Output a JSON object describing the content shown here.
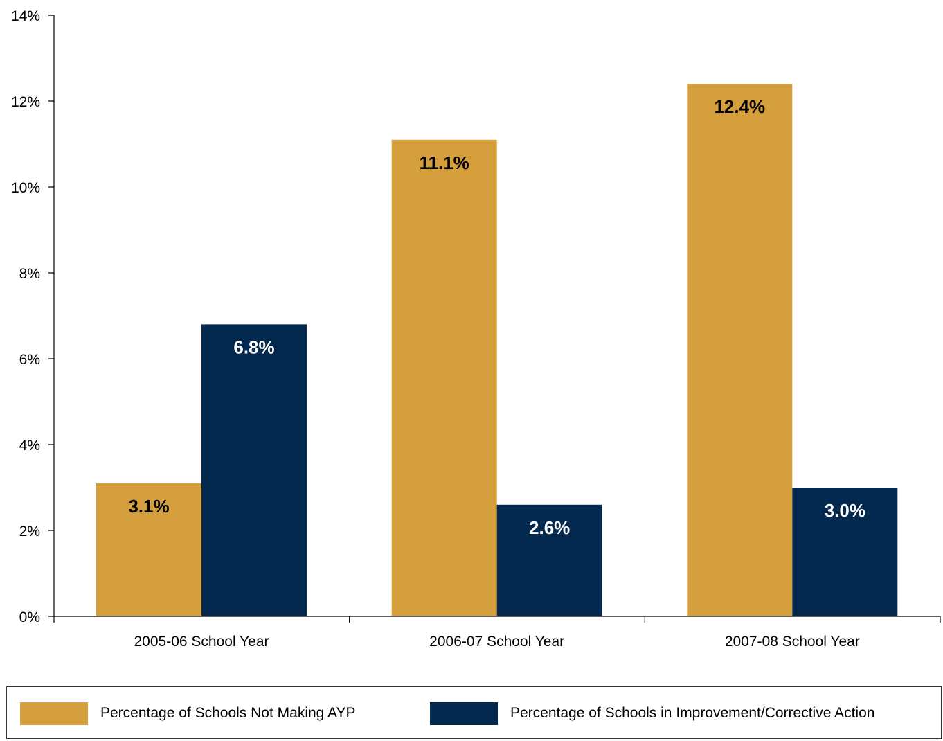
{
  "chart_data": {
    "type": "bar",
    "title": "",
    "xlabel": "",
    "ylabel": "",
    "categories": [
      "2005-06 School Year",
      "2006-07 School Year",
      "2007-08 School Year"
    ],
    "series": [
      {
        "name": "Percentage of Schools Not Making AYP",
        "color": "#D49F3C",
        "label_color": "#000000",
        "values": [
          3.1,
          11.1,
          12.4
        ],
        "labels": [
          "3.1%",
          "11.1%",
          "12.4%"
        ]
      },
      {
        "name": "Percentage of Schools in Improvement/Corrective Action",
        "color": "#03294F",
        "label_color": "#ffffff",
        "values": [
          6.8,
          2.6,
          3.0
        ],
        "labels": [
          "6.8%",
          "2.6%",
          "3.0%"
        ]
      }
    ],
    "ylim": [
      0,
      14
    ],
    "yticks": [
      0,
      2,
      4,
      6,
      8,
      10,
      12,
      14
    ],
    "ytick_labels": [
      "0%",
      "2%",
      "4%",
      "6%",
      "8%",
      "10%",
      "12%",
      "14%"
    ],
    "grid": false,
    "legend_position": "bottom"
  }
}
